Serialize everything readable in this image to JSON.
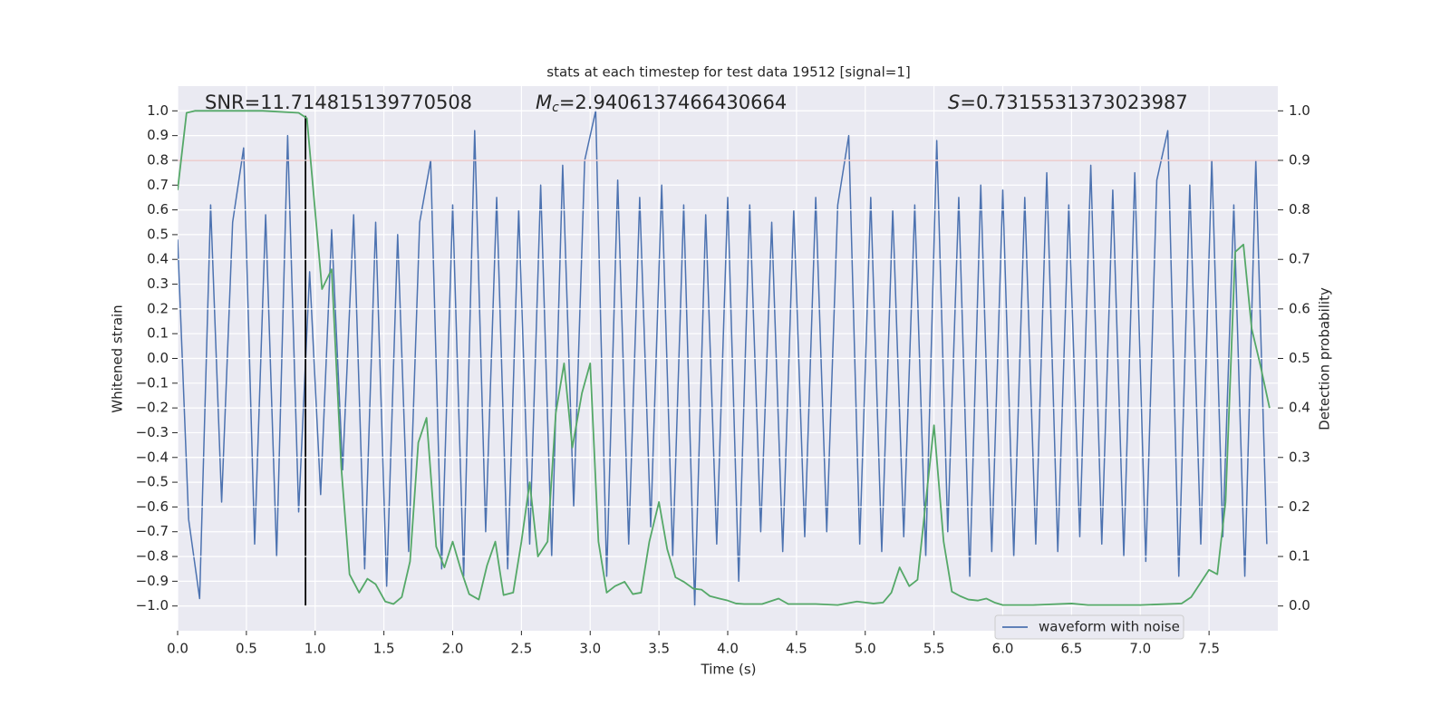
{
  "chart_data": {
    "type": "line",
    "title": "stats at each timestep for test data 19512 [signal=1]",
    "xlabel": "Time (s)",
    "ylabel": "Whitened strain",
    "y2label": "Detection probability",
    "grid": true,
    "legend": "lower right",
    "xlim": [
      0,
      8.0
    ],
    "ylim": [
      -1.1,
      1.1
    ],
    "y2lim": [
      -0.05,
      1.05
    ],
    "xticks": [
      {
        "value": 0,
        "label": "0.0"
      },
      {
        "value": 0.5,
        "label": "0.5"
      },
      {
        "value": 1,
        "label": "1.0"
      },
      {
        "value": 1.5,
        "label": "1.5"
      },
      {
        "value": 2,
        "label": "2.0"
      },
      {
        "value": 2.5,
        "label": "2.5"
      },
      {
        "value": 3,
        "label": "3.0"
      },
      {
        "value": 3.5,
        "label": "3.5"
      },
      {
        "value": 4,
        "label": "4.0"
      },
      {
        "value": 4.5,
        "label": "4.5"
      },
      {
        "value": 5,
        "label": "5.0"
      },
      {
        "value": 5.5,
        "label": "5.5"
      },
      {
        "value": 6,
        "label": "6.0"
      },
      {
        "value": 6.5,
        "label": "6.5"
      },
      {
        "value": 7,
        "label": "7.0"
      },
      {
        "value": 7.5,
        "label": "7.5"
      }
    ],
    "yticks": [
      {
        "value": -1,
        "label": "−1.0"
      },
      {
        "value": -0.9,
        "label": "−0.9"
      },
      {
        "value": -0.8,
        "label": "−0.8"
      },
      {
        "value": -0.7,
        "label": "−0.7"
      },
      {
        "value": -0.6,
        "label": "−0.6"
      },
      {
        "value": -0.5,
        "label": "−0.5"
      },
      {
        "value": -0.4,
        "label": "−0.4"
      },
      {
        "value": -0.3,
        "label": "−0.3"
      },
      {
        "value": -0.2,
        "label": "−0.2"
      },
      {
        "value": -0.1,
        "label": "−0.1"
      },
      {
        "value": 0,
        "label": "0.0"
      },
      {
        "value": 0.1,
        "label": "0.1"
      },
      {
        "value": 0.2,
        "label": "0.2"
      },
      {
        "value": 0.3,
        "label": "0.3"
      },
      {
        "value": 0.4,
        "label": "0.4"
      },
      {
        "value": 0.5,
        "label": "0.5"
      },
      {
        "value": 0.6,
        "label": "0.6"
      },
      {
        "value": 0.7,
        "label": "0.7"
      },
      {
        "value": 0.8,
        "label": "0.8"
      },
      {
        "value": 0.9,
        "label": "0.9"
      },
      {
        "value": 1,
        "label": "1.0"
      }
    ],
    "y2ticks": [
      {
        "value": 0,
        "label": "0.0"
      },
      {
        "value": 0.1,
        "label": "0.1"
      },
      {
        "value": 0.2,
        "label": "0.2"
      },
      {
        "value": 0.3,
        "label": "0.3"
      },
      {
        "value": 0.4,
        "label": "0.4"
      },
      {
        "value": 0.5,
        "label": "0.5"
      },
      {
        "value": 0.6,
        "label": "0.6"
      },
      {
        "value": 0.7,
        "label": "0.7"
      },
      {
        "value": 0.8,
        "label": "0.8"
      },
      {
        "value": 0.9,
        "label": "0.9"
      },
      {
        "value": 1,
        "label": "1.0"
      }
    ],
    "annotations": [
      {
        "text": "SNR=11.714815139770508"
      },
      {
        "symbol": "M",
        "subscript": "c",
        "text": "=2.9406137466430664"
      },
      {
        "symbol": "S",
        "text": "=0.7315531373023987"
      }
    ],
    "series": [
      {
        "name": "waveform with noise",
        "color": "#4c72b0",
        "x": [
          0,
          0.08,
          0.16,
          0.24,
          0.32,
          0.4,
          0.48,
          0.56,
          0.64,
          0.72,
          0.8,
          0.88,
          0.96,
          1.04,
          1.12,
          1.2,
          1.28,
          1.36,
          1.44,
          1.52,
          1.6,
          1.68,
          1.76,
          1.84,
          1.92,
          2.0,
          2.08,
          2.16,
          2.24,
          2.32,
          2.4,
          2.48,
          2.56,
          2.64,
          2.72,
          2.8,
          2.88,
          2.96,
          3.04,
          3.12,
          3.2,
          3.28,
          3.36,
          3.44,
          3.52,
          3.6,
          3.68,
          3.76,
          3.84,
          3.92,
          4.0,
          4.08,
          4.16,
          4.24,
          4.32,
          4.4,
          4.48,
          4.56,
          4.64,
          4.72,
          4.8,
          4.88,
          4.96,
          5.04,
          5.12,
          5.2,
          5.28,
          5.36,
          5.44,
          5.52,
          5.6,
          5.68,
          5.76,
          5.84,
          5.92,
          6.0,
          6.08,
          6.16,
          6.24,
          6.32,
          6.4,
          6.48,
          6.56,
          6.64,
          6.72,
          6.8,
          6.88,
          6.96,
          7.04,
          7.12,
          7.2,
          7.28,
          7.36,
          7.44,
          7.52,
          7.6,
          7.68,
          7.76,
          7.84,
          7.92
        ],
        "values": [
          0.48,
          -0.65,
          -0.97,
          0.62,
          -0.58,
          0.55,
          0.85,
          -0.75,
          0.58,
          -0.8,
          0.9,
          -0.62,
          0.35,
          -0.55,
          0.52,
          -0.45,
          0.58,
          -0.85,
          0.55,
          -0.92,
          0.5,
          -0.78,
          0.55,
          0.8,
          -0.85,
          0.62,
          -0.88,
          0.92,
          -0.7,
          0.65,
          -0.85,
          0.6,
          -0.75,
          0.7,
          -0.8,
          0.78,
          -0.6,
          0.8,
          1.0,
          -0.88,
          0.72,
          -0.75,
          0.65,
          -0.68,
          0.7,
          -0.8,
          0.62,
          -1.0,
          0.58,
          -0.75,
          0.65,
          -0.9,
          0.62,
          -0.7,
          0.55,
          -0.78,
          0.6,
          -0.72,
          0.65,
          -0.7,
          0.62,
          0.9,
          -0.75,
          0.65,
          -0.78,
          0.6,
          -0.72,
          0.62,
          -0.8,
          0.88,
          -0.7,
          0.65,
          -0.88,
          0.7,
          -0.78,
          0.68,
          -0.8,
          0.65,
          -0.75,
          0.75,
          -0.78,
          0.62,
          -0.72,
          0.78,
          -0.75,
          0.68,
          -0.8,
          0.75,
          -0.82,
          0.72,
          0.92,
          -0.88,
          0.7,
          -0.75,
          0.8,
          -0.72,
          0.62,
          -0.88,
          0.8,
          -0.75
        ]
      }
    ],
    "probability": {
      "color": "#55a868",
      "axis": "y2",
      "x": [
        0,
        0.065,
        0.125,
        0.62,
        0.88,
        0.94,
        0.98,
        1.05,
        1.12,
        1.19,
        1.25,
        1.32,
        1.38,
        1.44,
        1.51,
        1.57,
        1.63,
        1.69,
        1.75,
        1.81,
        1.88,
        1.94,
        2.0,
        2.06,
        2.12,
        2.19,
        2.25,
        2.31,
        2.37,
        2.44,
        2.5,
        2.56,
        2.62,
        2.69,
        2.75,
        2.81,
        2.87,
        2.94,
        3.0,
        3.06,
        3.12,
        3.18,
        3.25,
        3.31,
        3.37,
        3.43,
        3.5,
        3.56,
        3.62,
        3.68,
        3.75,
        3.81,
        3.87,
        3.94,
        4.0,
        4.06,
        4.12,
        4.25,
        4.37,
        4.44,
        4.64,
        4.8,
        4.94,
        5.06,
        5.13,
        5.19,
        5.25,
        5.32,
        5.38,
        5.44,
        5.5,
        5.57,
        5.63,
        5.69,
        5.75,
        5.82,
        5.88,
        5.94,
        6.0,
        6.22,
        6.5,
        6.62,
        7.0,
        7.3,
        7.37,
        7.5,
        7.56,
        7.62,
        7.69,
        7.75,
        7.81,
        7.87,
        7.94
      ],
      "values": [
        0.84,
        0.996,
        1.0,
        1.0,
        0.996,
        0.985,
        0.86,
        0.64,
        0.68,
        0.28,
        0.064,
        0.027,
        0.055,
        0.044,
        0.009,
        0.004,
        0.018,
        0.09,
        0.33,
        0.38,
        0.12,
        0.078,
        0.13,
        0.073,
        0.024,
        0.013,
        0.082,
        0.13,
        0.022,
        0.027,
        0.13,
        0.25,
        0.1,
        0.13,
        0.39,
        0.49,
        0.32,
        0.43,
        0.49,
        0.13,
        0.027,
        0.04,
        0.049,
        0.024,
        0.027,
        0.13,
        0.21,
        0.115,
        0.058,
        0.049,
        0.035,
        0.033,
        0.02,
        0.015,
        0.011,
        0.005,
        0.004,
        0.004,
        0.015,
        0.004,
        0.004,
        0.002,
        0.009,
        0.005,
        0.007,
        0.027,
        0.078,
        0.04,
        0.053,
        0.21,
        0.365,
        0.13,
        0.029,
        0.02,
        0.013,
        0.011,
        0.015,
        0.007,
        0.002,
        0.002,
        0.005,
        0.002,
        0.002,
        0.005,
        0.018,
        0.073,
        0.064,
        0.21,
        0.715,
        0.73,
        0.56,
        0.49,
        0.4
      ]
    },
    "hline": {
      "y": 0.8,
      "color": "#c44e52"
    },
    "vline": {
      "x": 0.93,
      "ymin": -1,
      "ymax": 0.98,
      "color": "#000000"
    }
  }
}
